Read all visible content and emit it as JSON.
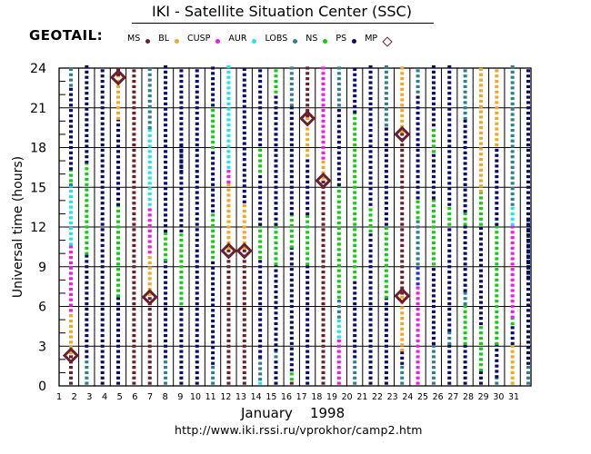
{
  "header": {
    "title": "IKI - Satellite Situation Center (SSC)",
    "satellite": "GEOTAIL:"
  },
  "legend": [
    {
      "label": "MS",
      "color": "#6b1f2e",
      "marker": "dot"
    },
    {
      "label": "BL",
      "color": "#f5a623",
      "marker": "dot"
    },
    {
      "label": "CUSP",
      "color": "#f01ae0",
      "marker": "dot"
    },
    {
      "label": "AUR",
      "color": "#1ee6ee",
      "marker": "dot"
    },
    {
      "label": "LOBS",
      "color": "#2e7f8c",
      "marker": "dot"
    },
    {
      "label": "NS",
      "color": "#12cc12",
      "marker": "dot"
    },
    {
      "label": "PS",
      "color": "#0a0a6e",
      "marker": "dot"
    },
    {
      "label": "MP",
      "color": "#6b1f2e",
      "marker": "diamond"
    }
  ],
  "footer": {
    "month_year": "January    1998",
    "url": "http://www.iki.rssi.ru/vprokhor/camp2.htm"
  },
  "chart_data": {
    "type": "scatter",
    "title": "IKI - Satellite Situation Center (SSC)",
    "xlabel": "January 1998",
    "ylabel": "Universal time (hours)",
    "xlim": [
      1,
      31
    ],
    "ylim": [
      0,
      24
    ],
    "x_ticks": [
      "1",
      "2",
      "3",
      "4",
      "5",
      "6",
      "7",
      "8",
      "9",
      "10",
      "11",
      "12",
      "13",
      "14",
      "15",
      "16",
      "17",
      "18",
      "19",
      "20",
      "21",
      "22",
      "23",
      "24",
      "25",
      "26",
      "27",
      "28",
      "29",
      "30",
      "31"
    ],
    "y_ticks": [
      0,
      3,
      6,
      9,
      12,
      15,
      18,
      21,
      24
    ],
    "grid": true,
    "legend_position": "top",
    "region_colors": {
      "MS": "#6b1f2e",
      "BL": "#f5a623",
      "AUR": "#f01ae0",
      "LOBS": "#1ee6ee",
      "NS": "#2e7f8c",
      "PS": "#12cc12",
      "MP": "#0a0a6e",
      "X": "#1a30e8"
    },
    "columns": [
      {
        "day": 2,
        "segments": [
          [
            "MS",
            0,
            2.3
          ],
          [
            "BL",
            2.3,
            5.5
          ],
          [
            "AUR",
            5.5,
            10.5
          ],
          [
            "LOBS",
            10.5,
            15
          ],
          [
            "NS",
            15,
            15.3
          ],
          [
            "PS",
            15.3,
            16.2
          ],
          [
            "MP",
            16.2,
            22.5
          ],
          [
            "NS",
            22.5,
            24
          ]
        ],
        "crossings": [
          2.3
        ]
      },
      {
        "day": 3,
        "segments": [
          [
            "NS",
            0,
            2
          ],
          [
            "MP",
            2,
            9.8
          ],
          [
            "PS",
            9.8,
            16.7
          ],
          [
            "MP",
            16.7,
            24
          ]
        ],
        "crossings": []
      },
      {
        "day": 4,
        "segments": [
          [
            "MP",
            0,
            24
          ]
        ],
        "crossings": []
      },
      {
        "day": 5,
        "segments": [
          [
            "MP",
            0,
            6.6
          ],
          [
            "PS",
            6.6,
            13.5
          ],
          [
            "MP",
            13.5,
            20
          ],
          [
            "BL",
            20,
            23.3
          ],
          [
            "MS",
            23.3,
            24
          ]
        ],
        "crossings": [
          23.3
        ]
      },
      {
        "day": 6,
        "segments": [
          [
            "MS",
            0,
            24
          ]
        ],
        "crossings": []
      },
      {
        "day": 7,
        "segments": [
          [
            "MS",
            0,
            6.7
          ],
          [
            "BL",
            6.7,
            9.9
          ],
          [
            "AUR",
            9.9,
            13.5
          ],
          [
            "LOBS",
            13.5,
            19.3
          ],
          [
            "NS",
            19.3,
            24
          ]
        ],
        "crossings": [
          6.7
        ]
      },
      {
        "day": 8,
        "segments": [
          [
            "NS",
            0,
            2
          ],
          [
            "MP",
            2,
            9.3
          ],
          [
            "PS",
            9.3,
            11.5
          ],
          [
            "MP",
            11.5,
            24
          ]
        ],
        "crossings": []
      },
      {
        "day": 9,
        "segments": [
          [
            "MP",
            0,
            6
          ],
          [
            "PS",
            6,
            11.5
          ],
          [
            "MP",
            11.5,
            18
          ],
          [
            "PS",
            18,
            16
          ],
          [
            "MP",
            16,
            24
          ]
        ],
        "crossings": []
      },
      {
        "day": 10,
        "segments": [
          [
            "MP",
            0,
            24
          ]
        ],
        "crossings": []
      },
      {
        "day": 11,
        "segments": [
          [
            "NS",
            0,
            1.5
          ],
          [
            "MP",
            1.5,
            9.5
          ],
          [
            "PS",
            9.5,
            13
          ],
          [
            "MP",
            13,
            17.8
          ],
          [
            "PS",
            17.8,
            21
          ],
          [
            "MP",
            21,
            24
          ]
        ],
        "crossings": []
      },
      {
        "day": 12,
        "segments": [
          [
            "MS",
            0,
            10.2
          ],
          [
            "BL",
            10.2,
            15.2
          ],
          [
            "AUR",
            15.2,
            16.3
          ],
          [
            "LOBS",
            16.3,
            24
          ]
        ],
        "crossings": [
          10.2
        ]
      },
      {
        "day": 13,
        "segments": [
          [
            "MS",
            0,
            10.2
          ],
          [
            "BL",
            10.2,
            13.7
          ],
          [
            "MP",
            13.7,
            24
          ]
        ],
        "crossings": [
          10.2
        ]
      },
      {
        "day": 14,
        "segments": [
          [
            "LOBS",
            0,
            0.3
          ],
          [
            "NS",
            0.3,
            2
          ],
          [
            "MP",
            2,
            9.5
          ],
          [
            "PS",
            9.5,
            12
          ],
          [
            "MP",
            12,
            16
          ],
          [
            "PS",
            16,
            18
          ],
          [
            "MP",
            18,
            24
          ]
        ],
        "crossings": []
      },
      {
        "day": 15,
        "segments": [
          [
            "MP",
            0,
            2
          ],
          [
            "NS",
            2,
            2.5
          ],
          [
            "MP",
            2.5,
            9
          ],
          [
            "PS",
            9,
            12
          ],
          [
            "MP",
            12,
            22
          ],
          [
            "PS",
            22,
            24
          ]
        ],
        "crossings": []
      },
      {
        "day": 16,
        "segments": [
          [
            "MS",
            0,
            0.3
          ],
          [
            "PS",
            0.3,
            1
          ],
          [
            "MP",
            1,
            10.3
          ],
          [
            "PS",
            10.3,
            12.8
          ],
          [
            "MP",
            12.8,
            21
          ],
          [
            "NS",
            21,
            24
          ]
        ],
        "crossings": []
      },
      {
        "day": 17,
        "segments": [
          [
            "MP",
            0,
            9
          ],
          [
            "PS",
            9,
            12.8
          ],
          [
            "MP",
            12.8,
            17.2
          ],
          [
            "BL",
            17.2,
            20.2
          ],
          [
            "MS",
            20.2,
            24
          ]
        ],
        "crossings": [
          20.2
        ]
      },
      {
        "day": 18,
        "segments": [
          [
            "MS",
            0,
            15.5
          ],
          [
            "BL",
            15.5,
            17
          ],
          [
            "AUR",
            17,
            24
          ]
        ],
        "crossings": [
          15.5
        ]
      },
      {
        "day": 19,
        "segments": [
          [
            "AUR",
            0,
            3.5
          ],
          [
            "LOBS",
            3.5,
            5
          ],
          [
            "NS",
            5,
            6.5
          ],
          [
            "PS",
            6.5,
            15
          ],
          [
            "MP",
            15,
            21
          ],
          [
            "NS",
            21,
            24
          ]
        ],
        "crossings": []
      },
      {
        "day": 20,
        "segments": [
          [
            "NS",
            0,
            2
          ],
          [
            "MP",
            2,
            8
          ],
          [
            "PS",
            8,
            20.5
          ],
          [
            "MP",
            20.5,
            24
          ]
        ],
        "crossings": []
      },
      {
        "day": 21,
        "segments": [
          [
            "MP",
            0,
            11.5
          ],
          [
            "PS",
            11.5,
            13.5
          ],
          [
            "MP",
            13.5,
            24
          ]
        ],
        "crossings": []
      },
      {
        "day": 22,
        "segments": [
          [
            "MP",
            0,
            6.5
          ],
          [
            "PS",
            6.5,
            12
          ],
          [
            "MP",
            12,
            19.5
          ],
          [
            "NS",
            19.5,
            24
          ]
        ],
        "crossings": []
      },
      {
        "day": 23,
        "segments": [
          [
            "NS",
            0,
            1.5
          ],
          [
            "MP",
            1.5,
            2.5
          ],
          [
            "BL",
            2.5,
            6.8
          ],
          [
            "MS",
            6.8,
            19
          ],
          [
            "BL",
            19,
            24
          ]
        ],
        "crossings": [
          19.0,
          6.8
        ]
      },
      {
        "day": 24,
        "segments": [
          [
            "AUR",
            0,
            7.5
          ],
          [
            "X",
            7.5,
            9
          ],
          [
            "NS",
            9,
            12.5
          ],
          [
            "PS",
            12.5,
            14
          ],
          [
            "MP",
            14,
            22
          ],
          [
            "NS",
            22,
            24
          ]
        ],
        "crossings": []
      },
      {
        "day": 25,
        "segments": [
          [
            "NS",
            0,
            3
          ],
          [
            "MP",
            3,
            9
          ],
          [
            "PS",
            9,
            14
          ],
          [
            "MP",
            14,
            17.5
          ],
          [
            "PS",
            17.5,
            19.5
          ],
          [
            "MP",
            19.5,
            24
          ]
        ],
        "crossings": []
      },
      {
        "day": 26,
        "segments": [
          [
            "MP",
            0,
            3
          ],
          [
            "NS",
            3,
            4
          ],
          [
            "MP",
            4,
            12
          ],
          [
            "PS",
            12,
            13.5
          ],
          [
            "MP",
            13.5,
            24
          ]
        ],
        "crossings": []
      },
      {
        "day": 27,
        "segments": [
          [
            "MP",
            0,
            3
          ],
          [
            "PS",
            3,
            6
          ],
          [
            "NS",
            6,
            7
          ],
          [
            "MP",
            7,
            12
          ],
          [
            "PS",
            12,
            13
          ],
          [
            "MP",
            13,
            20
          ],
          [
            "NS",
            20,
            24
          ]
        ],
        "crossings": []
      },
      {
        "day": 28,
        "segments": [
          [
            "MP",
            0,
            1
          ],
          [
            "PS",
            1,
            4.5
          ],
          [
            "MP",
            4.5,
            12
          ],
          [
            "PS",
            12,
            14.5
          ],
          [
            "BL",
            14.5,
            24
          ]
        ],
        "crossings": []
      },
      {
        "day": 29,
        "segments": [
          [
            "NS",
            0,
            0.5
          ],
          [
            "MP",
            0.5,
            3
          ],
          [
            "PS",
            3,
            12
          ],
          [
            "MP",
            12,
            18
          ],
          [
            "BL",
            18,
            24
          ]
        ],
        "crossings": []
      },
      {
        "day": 30,
        "segments": [
          [
            "BL",
            0,
            3
          ],
          [
            "MP",
            3,
            4.5
          ],
          [
            "PS",
            4.5,
            5
          ],
          [
            "AUR",
            5,
            12
          ],
          [
            "LOBS",
            12,
            13.5
          ],
          [
            "NS",
            13.5,
            24
          ]
        ],
        "crossings": []
      },
      {
        "day": 31,
        "segments": [
          [
            "NS",
            0,
            1.5
          ],
          [
            "MP",
            1.5,
            12.5
          ],
          [
            "PS",
            12.5,
            8
          ],
          [
            "MP",
            8,
            24
          ]
        ],
        "crossings": []
      }
    ]
  }
}
